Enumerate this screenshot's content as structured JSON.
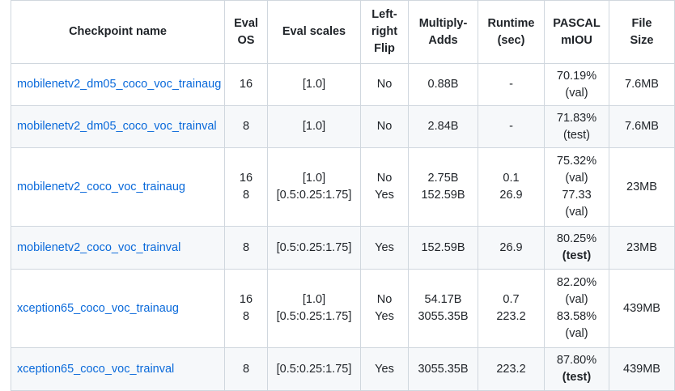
{
  "headers": {
    "name": "Checkpoint name",
    "os": [
      "Eval",
      "OS"
    ],
    "scales": "Eval scales",
    "flip": [
      "Left-",
      "right",
      "Flip"
    ],
    "madds": [
      "Multiply-",
      "Adds"
    ],
    "runtime": [
      "Runtime",
      "(sec)"
    ],
    "miou": [
      "PASCAL",
      "mIOU"
    ],
    "size": [
      "File",
      "Size"
    ]
  },
  "rows": [
    {
      "name": "mobilenetv2_dm05_coco_voc_trainaug",
      "os": [
        "16"
      ],
      "scales": [
        "[1.0]"
      ],
      "flip": [
        "No"
      ],
      "madds": [
        "0.88B"
      ],
      "runtime": [
        "-"
      ],
      "miou": [
        "70.19%",
        "(val)"
      ],
      "size": "7.6MB"
    },
    {
      "name": "mobilenetv2_dm05_coco_voc_trainval",
      "os": [
        "8"
      ],
      "scales": [
        "[1.0]"
      ],
      "flip": [
        "No"
      ],
      "madds": [
        "2.84B"
      ],
      "runtime": [
        "-"
      ],
      "miou": [
        "71.83%",
        "(test)"
      ],
      "size": "7.6MB"
    },
    {
      "name": "mobilenetv2_coco_voc_trainaug",
      "os": [
        "16",
        "8"
      ],
      "scales": [
        "[1.0]",
        "[0.5:0.25:1.75]"
      ],
      "flip": [
        "No",
        "Yes"
      ],
      "madds": [
        "2.75B",
        "152.59B"
      ],
      "runtime": [
        "0.1",
        "26.9"
      ],
      "miou": [
        "75.32%",
        "(val)",
        "77.33",
        "(val)"
      ],
      "size": "23MB"
    },
    {
      "name": "mobilenetv2_coco_voc_trainval",
      "os": [
        "8"
      ],
      "scales": [
        "[0.5:0.25:1.75]"
      ],
      "flip": [
        "Yes"
      ],
      "madds": [
        "152.59B"
      ],
      "runtime": [
        "26.9"
      ],
      "miou": [
        "80.25%",
        "(test)"
      ],
      "size": "23MB"
    },
    {
      "name": "xception65_coco_voc_trainaug",
      "os": [
        "16",
        "8"
      ],
      "scales": [
        "[1.0]",
        "[0.5:0.25:1.75]"
      ],
      "flip": [
        "No",
        "Yes"
      ],
      "madds": [
        "54.17B",
        "3055.35B"
      ],
      "runtime": [
        "0.7",
        "223.2"
      ],
      "miou": [
        "82.20%",
        "(val)",
        "83.58%",
        "(val)"
      ],
      "size": "439MB"
    },
    {
      "name": "xception65_coco_voc_trainval",
      "os": [
        "8"
      ],
      "scales": [
        "[0.5:0.25:1.75]"
      ],
      "flip": [
        "Yes"
      ],
      "madds": [
        "3055.35B"
      ],
      "runtime": [
        "223.2"
      ],
      "miou": [
        "87.80%",
        "(test)"
      ],
      "size": "439MB"
    }
  ],
  "colors": {
    "link": "#0969da",
    "border": "#d0d7de",
    "stripe": "#f6f8fa",
    "text": "#1f2328"
  }
}
